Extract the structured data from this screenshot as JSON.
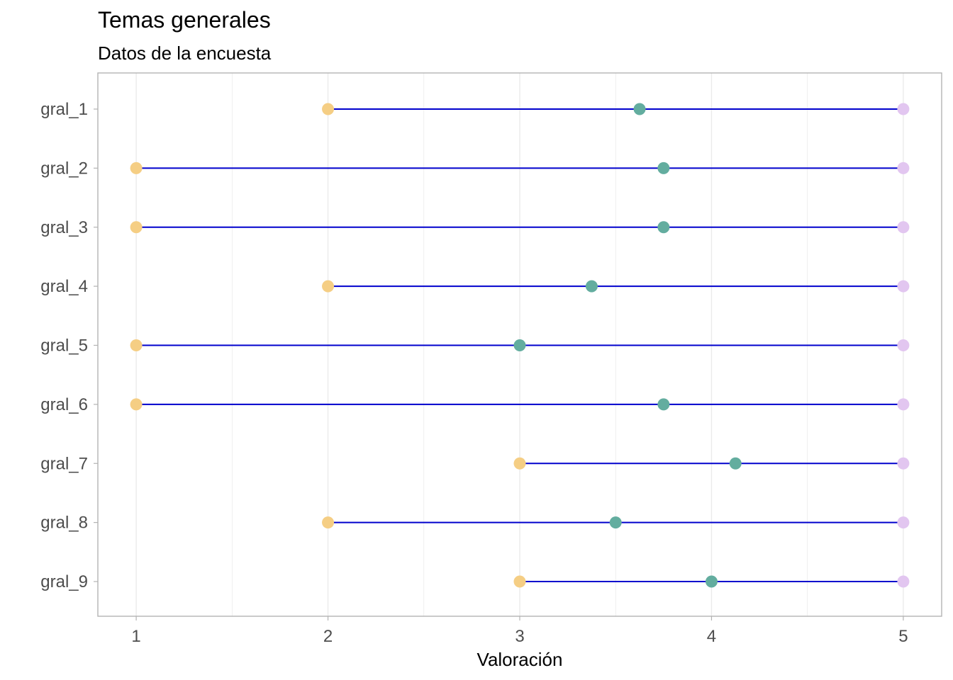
{
  "chart_data": {
    "type": "dumbbell",
    "title": "Temas generales",
    "subtitle": "Datos de la encuesta",
    "xlabel": "Valoración",
    "ylabel": "",
    "xlim": [
      0.8,
      5.2
    ],
    "x_ticks": [
      "1",
      "2",
      "3",
      "4",
      "5"
    ],
    "grid": true,
    "categories": [
      "gral_1",
      "gral_2",
      "gral_3",
      "gral_4",
      "gral_5",
      "gral_6",
      "gral_7",
      "gral_8",
      "gral_9"
    ],
    "series": [
      {
        "role": "min",
        "color": "#F5CE84",
        "values": [
          2,
          1,
          1,
          2,
          1,
          1,
          3,
          2,
          3
        ]
      },
      {
        "role": "mean",
        "color": "#63AD9F",
        "values": [
          3.625,
          3.75,
          3.75,
          3.375,
          3.0,
          3.75,
          4.125,
          3.5,
          4.0
        ]
      },
      {
        "role": "max",
        "color": "#E2C6F0",
        "values": [
          5,
          5,
          5,
          5,
          5,
          5,
          5,
          5,
          5
        ]
      }
    ],
    "line_color": "#0000CD",
    "panel_border_color": "#B3B3B3",
    "grid_color": "#EBEBEB"
  }
}
